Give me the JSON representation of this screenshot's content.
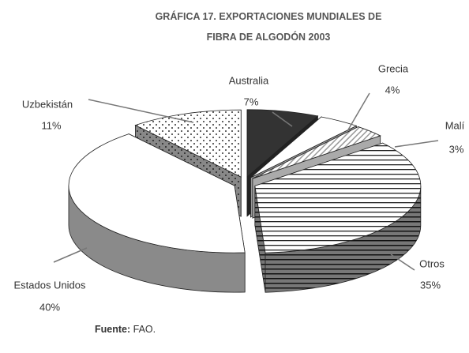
{
  "chart_data": {
    "type": "pie",
    "title": "GRÁFICA 17. EXPORTACIONES MUNDIALES DE FIBRA DE ALGODÓN 2003",
    "categories": [
      "Australia",
      "Grecia",
      "Malí",
      "Otros",
      "Estados Unidos",
      "Uzbekistán"
    ],
    "values": [
      7,
      4,
      3,
      35,
      40,
      11
    ],
    "value_labels": [
      "7%",
      "4%",
      "3%",
      "35%",
      "40%",
      "11%"
    ],
    "source_label": "Fuente:",
    "source": "FAO."
  }
}
